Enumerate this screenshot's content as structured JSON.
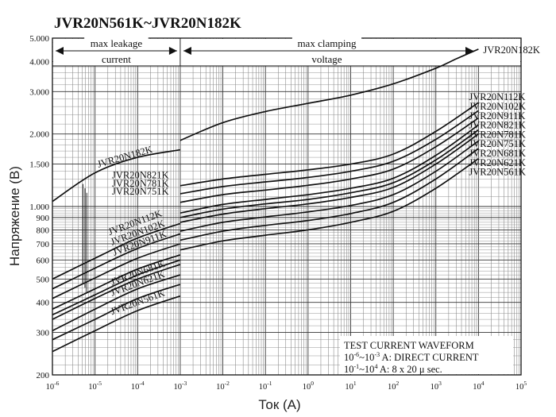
{
  "chart_data": {
    "type": "line",
    "title": "JVR20N561K~JVR20N182K",
    "xlabel": "Ток (A)",
    "ylabel": "Напряжение (В)",
    "x_scale": "log",
    "y_scale": "log",
    "xlim": [
      1e-06,
      100000
    ],
    "ylim": [
      200,
      5000
    ],
    "grid": true,
    "x_ticks": [
      {
        "value": 1e-06,
        "base": "10",
        "exp": "-6"
      },
      {
        "value": 1e-05,
        "base": "10",
        "exp": "-5"
      },
      {
        "value": 0.0001,
        "base": "10",
        "exp": "-4"
      },
      {
        "value": 0.001,
        "base": "10",
        "exp": "-3"
      },
      {
        "value": 0.01,
        "base": "10",
        "exp": "-2"
      },
      {
        "value": 0.1,
        "base": "10",
        "exp": "-1"
      },
      {
        "value": 1,
        "base": "10",
        "exp": "0"
      },
      {
        "value": 10,
        "base": "10",
        "exp": "1"
      },
      {
        "value": 100,
        "base": "10",
        "exp": "2"
      },
      {
        "value": 1000,
        "base": "10",
        "exp": "3"
      },
      {
        "value": 10000,
        "base": "10",
        "exp": "4"
      },
      {
        "value": 100000,
        "base": "10",
        "exp": "5"
      }
    ],
    "y_ticks": [
      {
        "value": 200,
        "label": "200"
      },
      {
        "value": 300,
        "label": "300"
      },
      {
        "value": 400,
        "label": "400"
      },
      {
        "value": 500,
        "label": "500"
      },
      {
        "value": 600,
        "label": "600"
      },
      {
        "value": 700,
        "label": "700"
      },
      {
        "value": 800,
        "label": "800"
      },
      {
        "value": 900,
        "label": "900"
      },
      {
        "value": 1000,
        "label": "1.000"
      },
      {
        "value": 1500,
        "label": "1.500"
      },
      {
        "value": 2000,
        "label": "2.000"
      },
      {
        "value": 3000,
        "label": "3.000"
      },
      {
        "value": 4000,
        "label": "4.000"
      },
      {
        "value": 5000,
        "label": "5.000"
      }
    ],
    "regions": {
      "leakage_line1": "max leakage",
      "leakage_line2": "current",
      "clamping_line1": "max clamping",
      "clamping_line2": "voltage",
      "boundary_current": 0.001
    },
    "leakage_series": [
      {
        "name": "JVR20N182K",
        "x": [
          1e-06,
          1e-05,
          0.0001,
          0.001
        ],
        "y": [
          1050,
          1380,
          1600,
          1720
        ]
      },
      {
        "name": "JVR20N112K",
        "x": [
          1e-06,
          1e-05,
          0.0001,
          0.001
        ],
        "y": [
          500,
          610,
          740,
          850
        ]
      },
      {
        "name": "JVR20N102K",
        "x": [
          1e-06,
          1e-05,
          0.0001,
          0.001
        ],
        "y": [
          455,
          555,
          670,
          770
        ]
      },
      {
        "name": "JVR20N911K",
        "x": [
          1e-06,
          1e-05,
          0.0001,
          0.001
        ],
        "y": [
          415,
          505,
          610,
          700
        ]
      },
      {
        "name": "JVR20N821K",
        "x": [
          1e-06,
          1e-05,
          0.0001,
          0.001
        ],
        "y": [
          375,
          455,
          550,
          630
        ]
      },
      {
        "name": "JVR20N781K",
        "x": [
          1e-06,
          1e-05,
          0.0001,
          0.001
        ],
        "y": [
          355,
          430,
          520,
          600
        ]
      },
      {
        "name": "JVR20N751K",
        "x": [
          1e-06,
          1e-05,
          0.0001,
          0.001
        ],
        "y": [
          340,
          415,
          500,
          575
        ]
      },
      {
        "name": "JVR20N681K",
        "x": [
          1e-06,
          1e-05,
          0.0001,
          0.001
        ],
        "y": [
          305,
          375,
          455,
          520
        ]
      },
      {
        "name": "JVR20N621K",
        "x": [
          1e-06,
          1e-05,
          0.0001,
          0.001
        ],
        "y": [
          280,
          340,
          415,
          475
        ]
      },
      {
        "name": "JVR20N561K",
        "x": [
          1e-06,
          1e-05,
          0.0001,
          0.001
        ],
        "y": [
          250,
          305,
          370,
          425
        ]
      }
    ],
    "leakage_labels": [
      {
        "text": "JVR20N182K",
        "series": "JVR20N182K"
      },
      {
        "text": "JVR20N821K",
        "series": "JVR20N821K"
      },
      {
        "text": "JVR20N781K",
        "series": "JVR20N781K"
      },
      {
        "text": "JVR20N751K",
        "series": "JVR20N751K"
      },
      {
        "text": "JVR20N112K",
        "series": "JVR20N112K"
      },
      {
        "text": "JVR20N102K",
        "series": "JVR20N102K"
      },
      {
        "text": "JVR20N911K",
        "series": "JVR20N911K"
      },
      {
        "text": "JVR20N681K",
        "series": "JVR20N681K"
      },
      {
        "text": "JVR20N621K",
        "series": "JVR20N621K"
      },
      {
        "text": "JVR20N561K",
        "series": "JVR20N561K"
      }
    ],
    "clamping_series": [
      {
        "name": "JVR20N182K",
        "x": [
          0.001,
          0.01,
          0.1,
          1,
          10,
          100,
          1000,
          3000,
          10000
        ],
        "y": [
          1880,
          2230,
          2480,
          2680,
          2900,
          3230,
          3750,
          4100,
          4500
        ]
      },
      {
        "name": "JVR20N112K",
        "x": [
          0.001,
          0.01,
          0.1,
          1,
          10,
          100,
          1000,
          10000
        ],
        "y": [
          1220,
          1300,
          1360,
          1420,
          1500,
          1650,
          2050,
          2700
        ]
      },
      {
        "name": "JVR20N102K",
        "x": [
          0.001,
          0.01,
          0.1,
          1,
          10,
          100,
          1000,
          10000
        ],
        "y": [
          1130,
          1210,
          1265,
          1320,
          1400,
          1540,
          1900,
          2500
        ]
      },
      {
        "name": "JVR20N911K",
        "x": [
          0.001,
          0.01,
          0.1,
          1,
          10,
          100,
          1000,
          10000
        ],
        "y": [
          1040,
          1120,
          1170,
          1225,
          1300,
          1430,
          1770,
          2330
        ]
      },
      {
        "name": "JVR20N821K",
        "x": [
          0.001,
          0.01,
          0.1,
          1,
          10,
          100,
          1000,
          10000
        ],
        "y": [
          940,
          1020,
          1070,
          1120,
          1190,
          1310,
          1630,
          2180
        ]
      },
      {
        "name": "JVR20N781K",
        "x": [
          0.001,
          0.01,
          0.1,
          1,
          10,
          100,
          1000,
          10000
        ],
        "y": [
          900,
          975,
          1025,
          1070,
          1140,
          1255,
          1560,
          2080
        ]
      },
      {
        "name": "JVR20N751K",
        "x": [
          0.001,
          0.01,
          0.1,
          1,
          10,
          100,
          1000,
          10000
        ],
        "y": [
          860,
          930,
          980,
          1025,
          1090,
          1200,
          1500,
          2000
        ]
      },
      {
        "name": "JVR20N681K",
        "x": [
          0.001,
          0.01,
          0.1,
          1,
          10,
          100,
          1000,
          10000
        ],
        "y": [
          790,
          860,
          905,
          950,
          1010,
          1120,
          1400,
          1870
        ]
      },
      {
        "name": "JVR20N621K",
        "x": [
          0.001,
          0.01,
          0.1,
          1,
          10,
          100,
          1000,
          10000
        ],
        "y": [
          725,
          790,
          835,
          875,
          935,
          1040,
          1300,
          1740
        ]
      },
      {
        "name": "JVR20N561K",
        "x": [
          0.001,
          0.01,
          0.1,
          1,
          10,
          100,
          1000,
          10000
        ],
        "y": [
          660,
          720,
          760,
          800,
          860,
          955,
          1190,
          1580
        ]
      }
    ],
    "clamping_labels": [
      "JVR20N182K",
      "JVR20N112K",
      "JVR20N102K",
      "JVR20N911K",
      "JVR20N821K",
      "JVR20N781K",
      "JVR20N751K",
      "JVR20N681K",
      "JVR20N621K",
      "JVR20N561K"
    ],
    "annotation": {
      "line1": "TEST CURRENT WAVEFORM",
      "line2_a": "10",
      "line2_e1": "-6",
      "line2_b": "~10",
      "line2_e2": "-3",
      "line2_c": " A: DIRECT CURRENT",
      "line3_a": "10",
      "line3_e1": "-1",
      "line3_b": "~10",
      "line3_e2": "4",
      "line3_c": " A: 8 x 20 μ sec."
    }
  }
}
